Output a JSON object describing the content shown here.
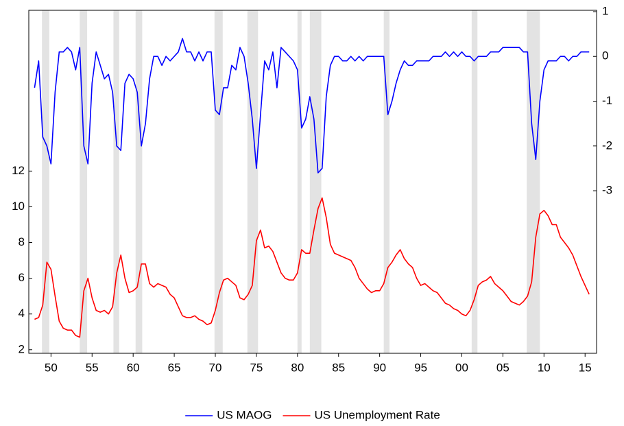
{
  "chart_data": {
    "type": "line",
    "x": [
      1948,
      1948.5,
      1949,
      1949.5,
      1950,
      1950.5,
      1951,
      1951.5,
      1952,
      1952.5,
      1953,
      1953.5,
      1954,
      1954.5,
      1955,
      1955.5,
      1956,
      1956.5,
      1957,
      1957.5,
      1958,
      1958.5,
      1959,
      1959.5,
      1960,
      1960.5,
      1961,
      1961.5,
      1962,
      1962.5,
      1963,
      1963.5,
      1964,
      1964.5,
      1965,
      1965.5,
      1966,
      1966.5,
      1967,
      1967.5,
      1968,
      1968.5,
      1969,
      1969.5,
      1970,
      1970.5,
      1971,
      1971.5,
      1972,
      1972.5,
      1973,
      1973.5,
      1974,
      1974.5,
      1975,
      1975.5,
      1976,
      1976.5,
      1977,
      1977.5,
      1978,
      1978.5,
      1979,
      1979.5,
      1980,
      1980.5,
      1981,
      1981.5,
      1982,
      1982.5,
      1983,
      1983.5,
      1984,
      1984.5,
      1985,
      1985.5,
      1986,
      1986.5,
      1987,
      1987.5,
      1988,
      1988.5,
      1989,
      1989.5,
      1990,
      1990.5,
      1991,
      1991.5,
      1992,
      1992.5,
      1993,
      1993.5,
      1994,
      1994.5,
      1995,
      1995.5,
      1996,
      1996.5,
      1997,
      1997.5,
      1998,
      1998.5,
      1999,
      1999.5,
      2000,
      2000.5,
      2001,
      2001.5,
      2002,
      2002.5,
      2003,
      2003.5,
      2004,
      2004.5,
      2005,
      2005.5,
      2006,
      2006.5,
      2007,
      2007.5,
      2008,
      2008.5,
      2009,
      2009.5,
      2010,
      2010.5,
      2011,
      2011.5,
      2012,
      2012.5,
      2013,
      2013.5,
      2014,
      2014.5,
      2015,
      2015.5
    ],
    "series": [
      {
        "name": "US MAOG",
        "color": "#0000ff",
        "axis": "y2",
        "values": [
          -0.7,
          -0.1,
          -1.8,
          -2.0,
          -2.4,
          -0.8,
          0.1,
          0.1,
          0.2,
          0.1,
          -0.3,
          0.2,
          -2.0,
          -2.4,
          -0.6,
          0.1,
          -0.2,
          -0.5,
          -0.4,
          -0.8,
          -2.0,
          -2.1,
          -0.6,
          -0.4,
          -0.5,
          -0.8,
          -2.0,
          -1.5,
          -0.5,
          0.0,
          0.0,
          -0.2,
          0.0,
          -0.1,
          0.0,
          0.1,
          0.4,
          0.1,
          0.1,
          -0.1,
          0.1,
          -0.1,
          0.1,
          0.1,
          -1.2,
          -1.3,
          -0.7,
          -0.7,
          -0.2,
          -0.3,
          0.2,
          0.0,
          -0.6,
          -1.4,
          -2.5,
          -1.3,
          -0.1,
          -0.3,
          0.1,
          -0.7,
          0.2,
          0.1,
          0.0,
          -0.1,
          -0.3,
          -1.6,
          -1.4,
          -0.9,
          -1.4,
          -2.6,
          -2.5,
          -0.9,
          -0.2,
          0.0,
          0.0,
          -0.1,
          -0.1,
          0.0,
          -0.1,
          0.0,
          -0.1,
          0.0,
          0.0,
          0.0,
          0.0,
          0.0,
          -1.3,
          -1.0,
          -0.6,
          -0.3,
          -0.1,
          -0.2,
          -0.2,
          -0.1,
          -0.1,
          -0.1,
          -0.1,
          0.0,
          0.0,
          0.0,
          0.1,
          0.0,
          0.1,
          0.0,
          0.1,
          0.0,
          0.0,
          -0.1,
          0.0,
          0.0,
          0.0,
          0.1,
          0.1,
          0.1,
          0.2,
          0.2,
          0.2,
          0.2,
          0.2,
          0.1,
          0.1,
          -1.5,
          -2.3,
          -1.0,
          -0.3,
          -0.1,
          -0.1,
          -0.1,
          0.0,
          0.0,
          -0.1,
          0.0,
          0.0,
          0.1,
          0.1,
          0.1
        ]
      },
      {
        "name": "US Unemployment Rate",
        "color": "#ff0000",
        "values": [
          3.7,
          3.8,
          4.5,
          6.9,
          6.5,
          5.0,
          3.6,
          3.2,
          3.1,
          3.1,
          2.8,
          2.7,
          5.3,
          6.0,
          4.9,
          4.2,
          4.1,
          4.2,
          4.0,
          4.4,
          6.3,
          7.3,
          6.0,
          5.2,
          5.3,
          5.5,
          6.8,
          6.8,
          5.7,
          5.5,
          5.7,
          5.6,
          5.5,
          5.1,
          4.9,
          4.4,
          3.9,
          3.8,
          3.8,
          3.9,
          3.7,
          3.6,
          3.4,
          3.5,
          4.2,
          5.2,
          5.9,
          6.0,
          5.8,
          5.6,
          4.9,
          4.8,
          5.1,
          5.6,
          8.1,
          8.7,
          7.7,
          7.8,
          7.5,
          6.9,
          6.3,
          6.0,
          5.9,
          5.9,
          6.3,
          7.6,
          7.4,
          7.4,
          8.7,
          9.9,
          10.5,
          9.4,
          7.9,
          7.4,
          7.3,
          7.2,
          7.1,
          7.0,
          6.6,
          6.0,
          5.7,
          5.4,
          5.2,
          5.3,
          5.3,
          5.7,
          6.6,
          6.9,
          7.3,
          7.6,
          7.1,
          6.8,
          6.6,
          6.0,
          5.6,
          5.7,
          5.5,
          5.3,
          5.2,
          4.9,
          4.6,
          4.5,
          4.3,
          4.2,
          4.0,
          3.9,
          4.2,
          4.8,
          5.6,
          5.8,
          5.9,
          6.1,
          5.7,
          5.5,
          5.3,
          5.0,
          4.7,
          4.6,
          4.5,
          4.7,
          5.0,
          5.8,
          8.3,
          9.6,
          9.8,
          9.5,
          9.0,
          9.0,
          8.3,
          8.0,
          7.7,
          7.3,
          6.7,
          6.1,
          5.6,
          5.1
        ]
      }
    ],
    "recessions": [
      [
        1948.9,
        1949.8
      ],
      [
        1953.5,
        1954.4
      ],
      [
        1957.6,
        1958.3
      ],
      [
        1960.3,
        1961.1
      ],
      [
        1969.9,
        1970.9
      ],
      [
        1973.9,
        1975.2
      ],
      [
        1980.0,
        1980.5
      ],
      [
        1981.5,
        1982.9
      ],
      [
        1990.5,
        1991.2
      ],
      [
        2001.2,
        2001.9
      ],
      [
        2007.9,
        2009.5
      ]
    ],
    "xlim": [
      1947.3,
      2016.4
    ],
    "xticks": [
      {
        "value": 1950,
        "label": "50"
      },
      {
        "value": 1955,
        "label": "55"
      },
      {
        "value": 1960,
        "label": "60"
      },
      {
        "value": 1965,
        "label": "65"
      },
      {
        "value": 1970,
        "label": "70"
      },
      {
        "value": 1975,
        "label": "75"
      },
      {
        "value": 1980,
        "label": "80"
      },
      {
        "value": 1985,
        "label": "85"
      },
      {
        "value": 1990,
        "label": "90"
      },
      {
        "value": 1995,
        "label": "95"
      },
      {
        "value": 2000,
        "label": "00"
      },
      {
        "value": 2005,
        "label": "05"
      },
      {
        "value": 2010,
        "label": "10"
      },
      {
        "value": 2015,
        "label": "15"
      }
    ],
    "ylim": [
      1.8,
      21
    ],
    "yticks": [
      2,
      4,
      6,
      8,
      10,
      12
    ],
    "y2lim": [
      -6.63,
      1.03
    ],
    "y2ticks": [
      1,
      0,
      -1,
      -2,
      -3
    ],
    "legend": "bottom"
  }
}
